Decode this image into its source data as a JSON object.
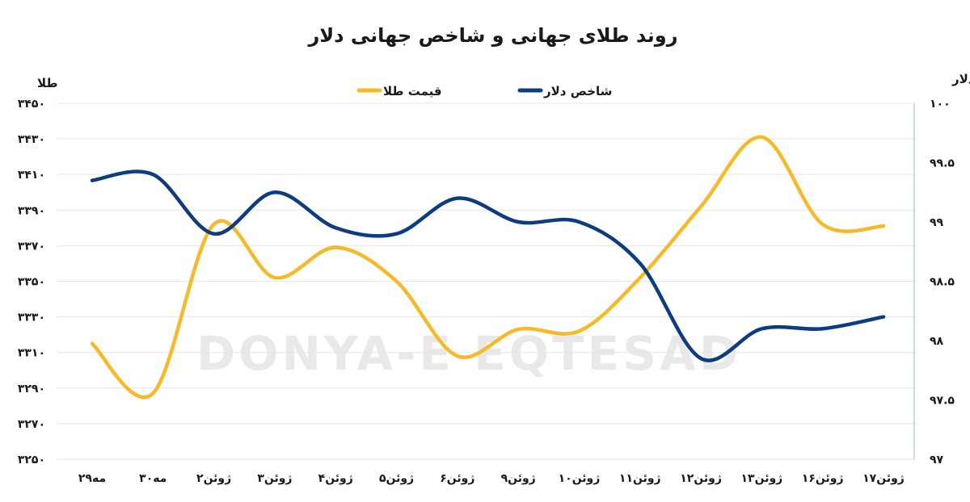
{
  "chart_data": {
    "type": "line",
    "title": "روند طلای جهانی و شاخص جهانی دلار",
    "watermark": "DONYA-E EQTESAD",
    "categories": [
      "۲۹مه",
      "۳۰مه",
      "۲ژوئن",
      "۳ژوئن",
      "۴ژوئن",
      "۵ژوئن",
      "۶ژوئن",
      "۹ژوئن",
      "۱۰ژوئن",
      "۱۱ژوئن",
      "۱۲ژوئن",
      "۱۳ژوئن",
      "۱۶ژوئن",
      "۱۷ژوئن"
    ],
    "y_left": {
      "label": "طلا",
      "min": 3250,
      "max": 3450,
      "step": 20,
      "ticks": [
        "۳۲۵۰",
        "۳۲۷۰",
        "۳۲۹۰",
        "۳۳۱۰",
        "۳۳۳۰",
        "۳۳۵۰",
        "۳۳۷۰",
        "۳۳۹۰",
        "۳۴۱۰",
        "۳۴۳۰",
        "۳۴۵۰"
      ]
    },
    "y_right": {
      "label": "دلار",
      "min": 97,
      "max": 100,
      "step": 0.5,
      "ticks": [
        "۹۷",
        "۹۷.۵",
        "۹۸",
        "۹۸.۵",
        "۹۹",
        "۹۹.۵",
        "۱۰۰"
      ]
    },
    "grid": true,
    "legend_position": "top-center",
    "series": [
      {
        "name": "قیمت طلا",
        "axis": "left",
        "color": "#F7B928",
        "values": [
          3315,
          3287,
          3382,
          3352,
          3369,
          3350,
          3308,
          3323,
          3322,
          3352,
          3392,
          3431,
          3382,
          3381
        ]
      },
      {
        "name": "شاخص دلار",
        "axis": "right",
        "color": "#0E3C80",
        "values": [
          99.35,
          99.4,
          98.9,
          99.25,
          98.95,
          98.9,
          99.2,
          99.0,
          99.0,
          98.65,
          97.85,
          98.1,
          98.1,
          98.2
        ]
      }
    ]
  }
}
